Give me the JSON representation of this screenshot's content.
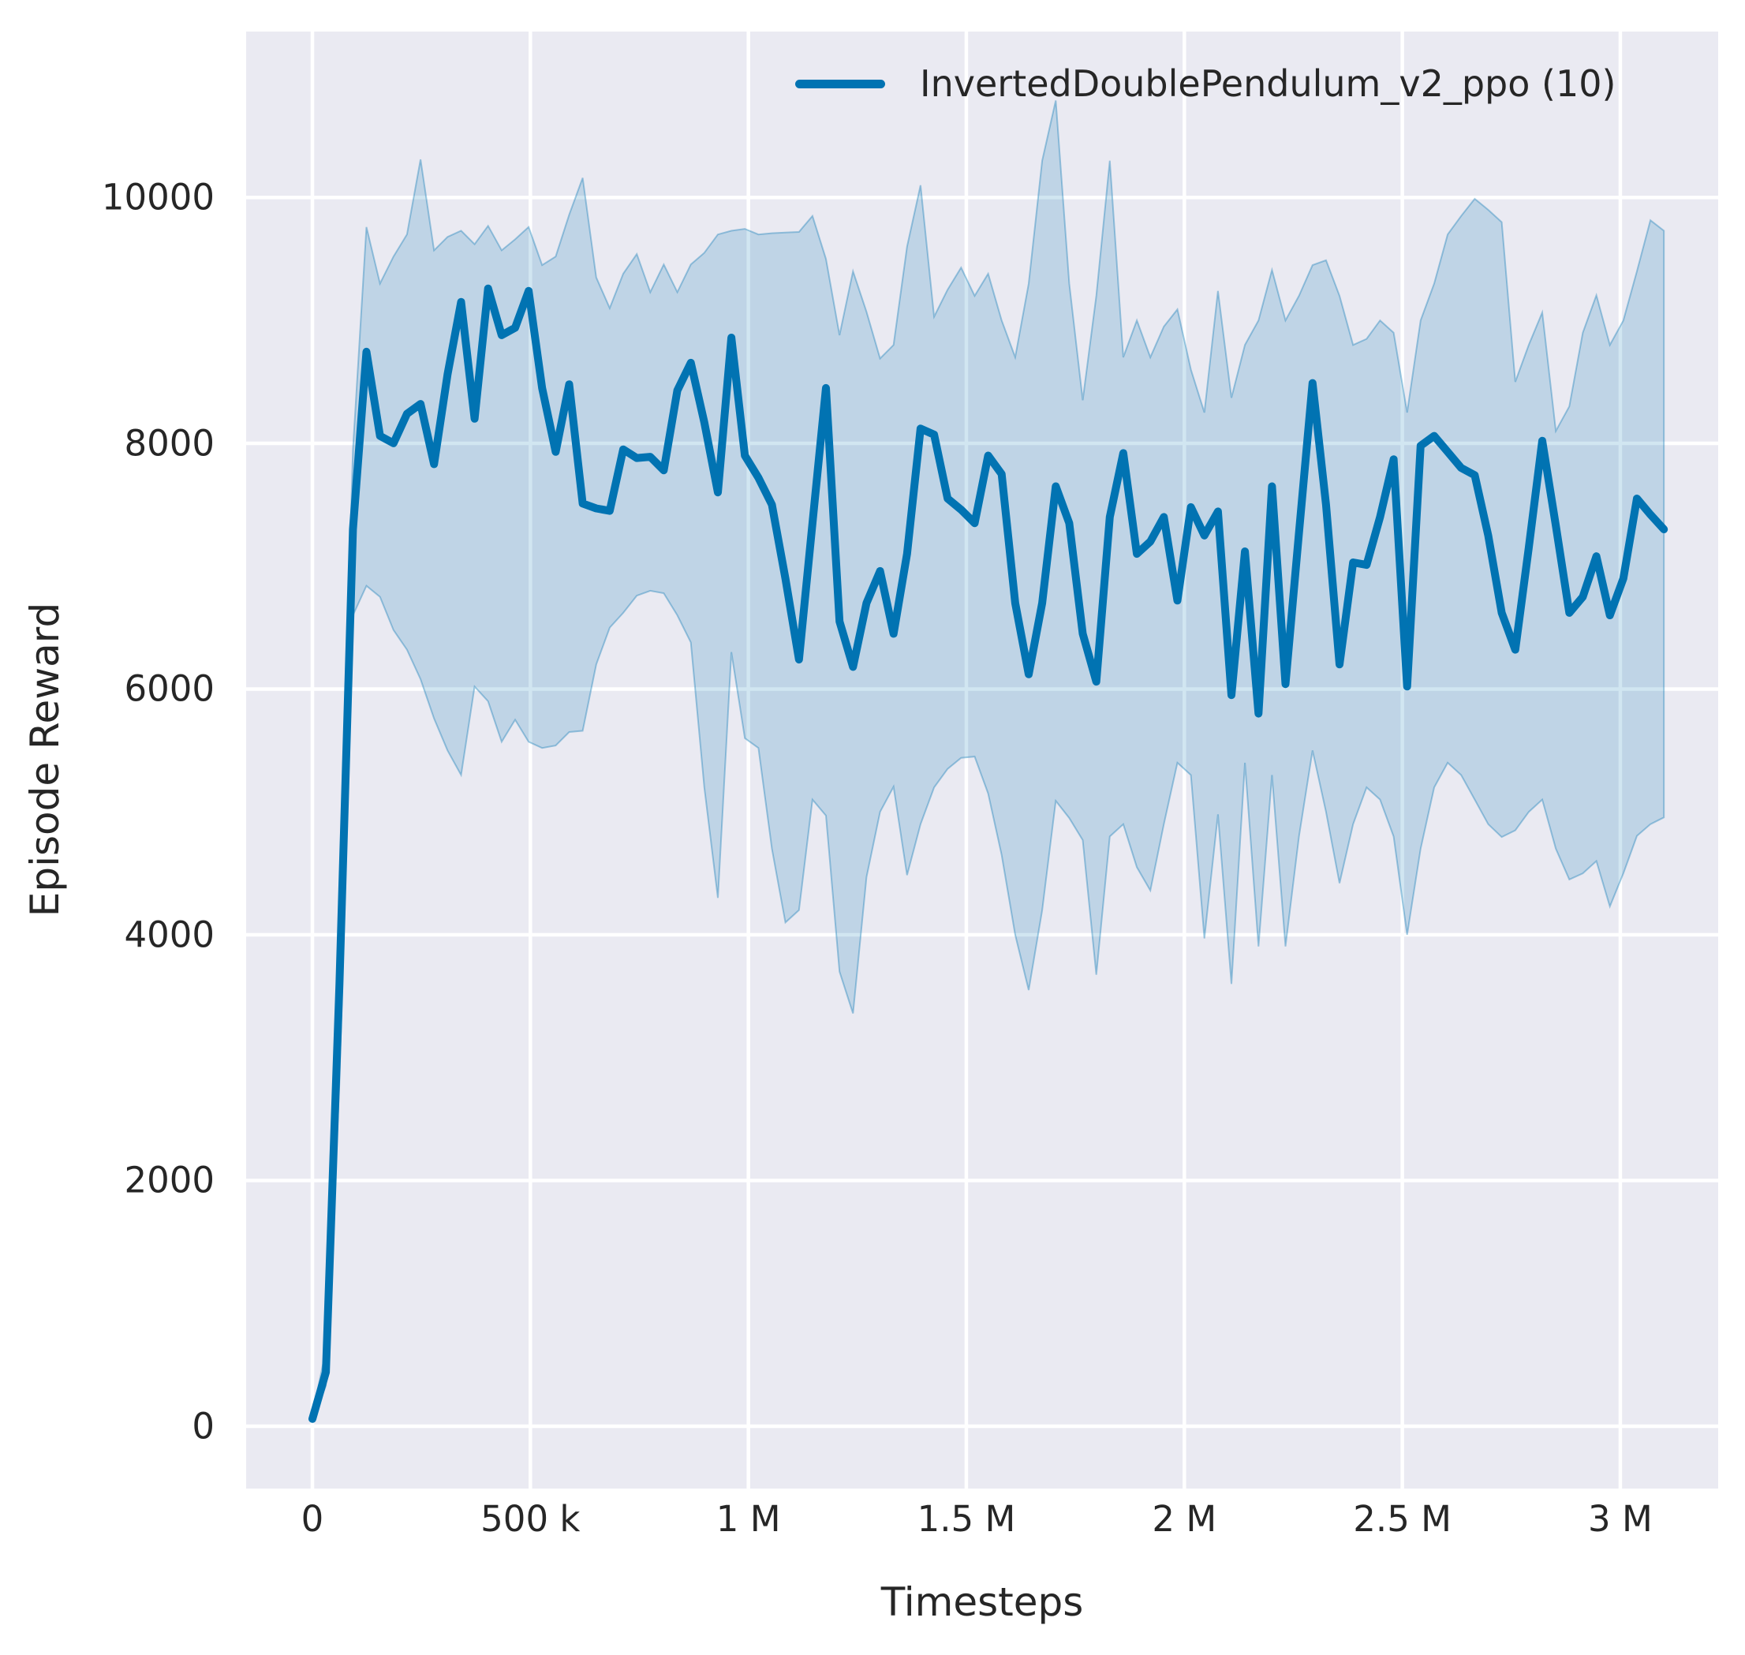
{
  "figure": {
    "background": "#ffffff",
    "plot_background": "#eaeaf2",
    "grid_color": "#ffffff",
    "text_color": "#262626"
  },
  "legend": {
    "label": "InvertedDoublePendulum_v2_ppo (10)",
    "color": "#0173b2",
    "position": "upper right"
  },
  "axes": {
    "x_label": "Timesteps",
    "y_label": "Episode Reward",
    "x_ticks": [
      {
        "value": 0,
        "label": "0"
      },
      {
        "value": 500,
        "label": "500 k"
      },
      {
        "value": 1000,
        "label": "1 M"
      },
      {
        "value": 1500,
        "label": "1.5 M"
      },
      {
        "value": 2000,
        "label": "2 M"
      },
      {
        "value": 2500,
        "label": "2.5 M"
      },
      {
        "value": 3000,
        "label": "3 M"
      }
    ],
    "y_ticks": [
      {
        "value": 0,
        "label": "0"
      },
      {
        "value": 2000,
        "label": "2000"
      },
      {
        "value": 4000,
        "label": "4000"
      },
      {
        "value": 6000,
        "label": "6000"
      },
      {
        "value": 8000,
        "label": "8000"
      },
      {
        "value": 10000,
        "label": "10000"
      }
    ]
  },
  "chart_data": {
    "type": "line",
    "title": "",
    "xlabel": "Timesteps",
    "ylabel": "Episode Reward",
    "x_unit": "thousand timesteps",
    "xlim": [
      -152,
      3224
    ],
    "ylim": [
      -507,
      11351
    ],
    "grid": true,
    "legend_position": "upper right",
    "x": [
      0,
      31,
      62,
      93,
      124,
      155,
      186,
      217,
      248,
      279,
      310,
      341,
      372,
      403,
      434,
      465,
      496,
      527,
      558,
      589,
      620,
      651,
      682,
      713,
      744,
      775,
      806,
      837,
      868,
      899,
      930,
      961,
      992,
      1023,
      1054,
      1085,
      1116,
      1147,
      1178,
      1209,
      1240,
      1271,
      1302,
      1333,
      1364,
      1395,
      1426,
      1457,
      1488,
      1519,
      1550,
      1581,
      1612,
      1643,
      1674,
      1705,
      1736,
      1767,
      1798,
      1829,
      1860,
      1891,
      1922,
      1953,
      1984,
      2015,
      2046,
      2077,
      2108,
      2139,
      2170,
      2201,
      2232,
      2263,
      2294,
      2325,
      2356,
      2387,
      2418,
      2449,
      2480,
      2511,
      2542,
      2573,
      2604,
      2635,
      2666,
      2697,
      2728,
      2759,
      2790,
      2821,
      2852,
      2883,
      2914,
      2945,
      2976,
      3007,
      3038,
      3069,
      3100
    ],
    "series": [
      {
        "name": "InvertedDoublePendulum_v2_ppo (10)",
        "color": "#0173b2",
        "mean": [
          60,
          440,
          3600,
          7300,
          8745,
          8060,
          8000,
          8240,
          8320,
          7830,
          8560,
          9150,
          8200,
          9260,
          8880,
          8940,
          9240,
          8450,
          7930,
          8480,
          7510,
          7470,
          7450,
          7950,
          7880,
          7890,
          7780,
          8430,
          8655,
          8170,
          7600,
          8860,
          7900,
          7720,
          7500,
          6900,
          6240,
          7350,
          8450,
          6550,
          6180,
          6700,
          6960,
          6450,
          7100,
          8120,
          8070,
          7550,
          7460,
          7350,
          7900,
          7750,
          6700,
          6120,
          6700,
          7650,
          7350,
          6450,
          6060,
          7400,
          7920,
          7100,
          7200,
          7400,
          6720,
          7480,
          7250,
          7445,
          5950,
          7120,
          5800,
          7650,
          6040,
          7270,
          8490,
          7500,
          6200,
          7030,
          7010,
          7400,
          7870,
          6020,
          7980,
          8060,
          7930,
          7800,
          7740,
          7250,
          6620,
          6320,
          7150,
          8020,
          7330,
          6620,
          6750,
          7080,
          6600,
          6900,
          7550,
          7420,
          7300
        ],
        "band_lower": [
          40,
          330,
          2800,
          6600,
          6840,
          6750,
          6480,
          6320,
          6080,
          5760,
          5500,
          5300,
          6020,
          5900,
          5570,
          5750,
          5570,
          5520,
          5540,
          5650,
          5660,
          6200,
          6500,
          6620,
          6760,
          6800,
          6780,
          6600,
          6380,
          5200,
          4300,
          6300,
          5600,
          5520,
          4700,
          4100,
          4200,
          5100,
          4970,
          3700,
          3360,
          4470,
          5000,
          5205,
          4485,
          4900,
          5200,
          5350,
          5440,
          5450,
          5150,
          4650,
          4000,
          3550,
          4200,
          5090,
          4950,
          4770,
          3675,
          4800,
          4900,
          4550,
          4360,
          4900,
          5400,
          5300,
          3970,
          4980,
          3600,
          5400,
          3905,
          5300,
          3905,
          4800,
          5500,
          5000,
          4420,
          4900,
          5200,
          5100,
          4800,
          4000,
          4700,
          5200,
          5400,
          5300,
          5100,
          4900,
          4795,
          4850,
          5000,
          5100,
          4700,
          4450,
          4500,
          4600,
          4230,
          4500,
          4805,
          4900,
          4955
        ],
        "band_upper": [
          90,
          620,
          4300,
          7950,
          9760,
          9300,
          9520,
          9700,
          10310,
          9570,
          9680,
          9730,
          9620,
          9770,
          9570,
          9660,
          9760,
          9450,
          9520,
          9860,
          10160,
          9350,
          9100,
          9380,
          9540,
          9230,
          9455,
          9230,
          9455,
          9550,
          9700,
          9730,
          9745,
          9700,
          9710,
          9715,
          9720,
          9850,
          9500,
          8880,
          9400,
          9070,
          8690,
          8800,
          9600,
          10100,
          9030,
          9250,
          9430,
          9200,
          9380,
          9000,
          8700,
          9300,
          10300,
          10790,
          9300,
          8350,
          9200,
          10300,
          8700,
          9000,
          8700,
          8950,
          9090,
          8600,
          8250,
          9240,
          8370,
          8800,
          9000,
          9410,
          9000,
          9200,
          9450,
          9490,
          9200,
          8800,
          8850,
          9000,
          8900,
          8250,
          9000,
          9300,
          9700,
          9850,
          9990,
          9900,
          9800,
          8500,
          8800,
          9065,
          8100,
          8300,
          8900,
          9205,
          8800,
          9000,
          9400,
          9815,
          9730
        ]
      }
    ]
  }
}
